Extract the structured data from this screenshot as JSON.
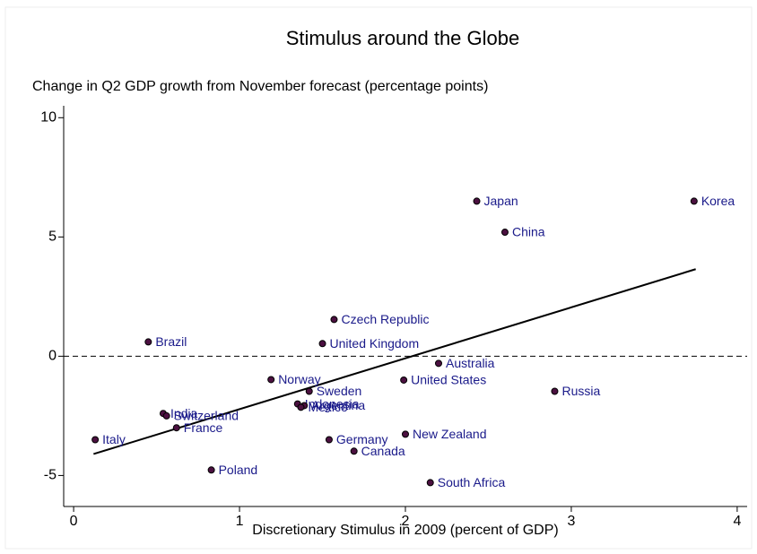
{
  "chart_data": {
    "type": "scatter",
    "title": "Stimulus around the Globe",
    "ylabel": "Change in Q2 GDP growth from November forecast (percentage points)",
    "xlabel": "Discretionary Stimulus in 2009 (percent of GDP)",
    "xlim": [
      -0.06,
      4.06
    ],
    "ylim": [
      -6.3,
      10.5
    ],
    "xticks": [
      0,
      1,
      2,
      3,
      4
    ],
    "yticks": [
      -5,
      0,
      5,
      10
    ],
    "hline": 0,
    "series": [
      {
        "color": "#4b1040",
        "label_color": "#1a1a8a",
        "labels": [
          "Korea",
          "Japan",
          "China",
          "Czech Republic",
          "United Kingdom",
          "Brazil",
          "Australia",
          "United States",
          "Russia",
          "Norway",
          "Sweden",
          "India",
          "Switzerland",
          "Indonesia",
          "Argentina",
          "Mexico",
          "France",
          "Italy",
          "Germany",
          "New Zealand",
          "Canada",
          "Poland",
          "South Africa"
        ],
        "x": [
          3.74,
          2.43,
          2.6,
          1.57,
          1.5,
          0.45,
          2.2,
          1.99,
          2.9,
          1.19,
          1.42,
          0.54,
          0.56,
          1.35,
          1.39,
          1.37,
          0.62,
          0.13,
          1.54,
          2.0,
          1.69,
          0.83,
          2.15
        ],
        "values": [
          6.5,
          6.5,
          5.2,
          1.54,
          0.53,
          0.6,
          -0.3,
          -1.0,
          -1.47,
          -0.98,
          -1.47,
          -2.4,
          -2.5,
          -2.0,
          -2.07,
          -2.14,
          -3.0,
          -3.5,
          -3.5,
          -3.27,
          -3.98,
          -4.77,
          -5.3
        ]
      }
    ],
    "fit": {
      "color": "#000000",
      "x": [
        0.12,
        3.75
      ],
      "values": [
        -4.1,
        3.65
      ]
    }
  }
}
